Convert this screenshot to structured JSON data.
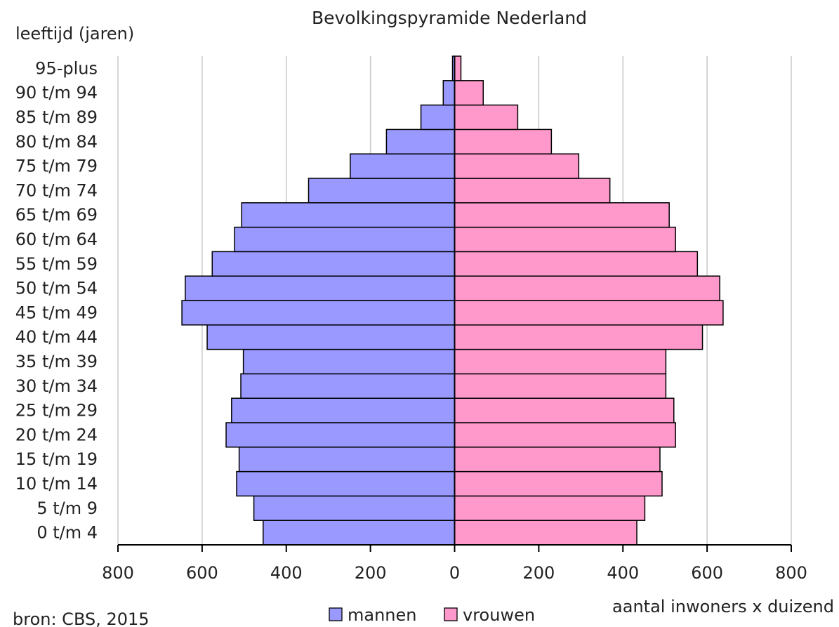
{
  "chart_data": {
    "type": "bar",
    "orientation": "horizontal",
    "layout": "population-pyramid",
    "title": "Bevolkingspyramide  Nederland",
    "ylabel": "leeftijd  (jaren)",
    "xlabel": "aantal  inwoners  x duizend",
    "source": "bron: CBS,  2015",
    "xlim": [
      -800,
      800
    ],
    "x_ticks": [
      -800,
      -600,
      -400,
      -200,
      0,
      200,
      400,
      600,
      800
    ],
    "x_tick_labels": [
      "800",
      "600",
      "400",
      "200",
      "0",
      "200",
      "400",
      "600",
      "800"
    ],
    "grid": "vertical",
    "legend_position": "bottom-center",
    "categories": [
      "0 t/m 4",
      "5 t/m 9",
      "10 t/m 14",
      "15 t/m 19",
      "20 t/m 24",
      "25 t/m 29",
      "30 t/m 34",
      "35 t/m 39",
      "40 t/m 44",
      "45 t/m 49",
      "50 t/m 54",
      "55 t/m 59",
      "60 t/m 64",
      "65 t/m 69",
      "70 t/m 74",
      "75 t/m 79",
      "80 t/m 84",
      "85 t/m 89",
      "90 t/m 94",
      "95-plus"
    ],
    "series": [
      {
        "name": "mannen",
        "side": "left",
        "color": "#9999ff",
        "values": [
          455,
          477,
          518,
          512,
          543,
          530,
          508,
          502,
          588,
          648,
          640,
          576,
          523,
          506,
          347,
          248,
          162,
          80,
          27,
          5
        ]
      },
      {
        "name": "vrouwen",
        "side": "right",
        "color": "#ff99cc",
        "values": [
          433,
          452,
          493,
          488,
          525,
          521,
          502,
          502,
          589,
          638,
          630,
          577,
          525,
          510,
          369,
          295,
          230,
          150,
          68,
          15
        ]
      }
    ]
  }
}
